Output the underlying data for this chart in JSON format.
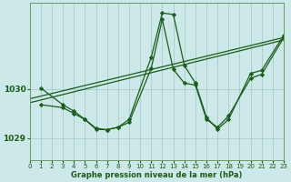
{
  "background_color": "#cce8e8",
  "grid_color": "#aacccc",
  "line_color": "#1a5c1a",
  "xlabel": "Graphe pression niveau de la mer (hPa)",
  "xlim": [
    0,
    23
  ],
  "ylim": [
    1028.55,
    1031.75
  ],
  "yticks": [
    1029,
    1030
  ],
  "xticks": [
    0,
    1,
    2,
    3,
    4,
    5,
    6,
    7,
    8,
    9,
    10,
    11,
    12,
    13,
    14,
    15,
    16,
    17,
    18,
    19,
    20,
    21,
    22,
    23
  ],
  "series": [
    {
      "x": [
        0,
        23
      ],
      "y": [
        1029.8,
        1031.05
      ],
      "marker": false
    },
    {
      "x": [
        0,
        23
      ],
      "y": [
        1029.72,
        1031.0
      ],
      "marker": false
    },
    {
      "x": [
        1,
        3,
        4,
        5,
        6,
        7,
        8,
        9,
        11,
        12,
        13,
        14,
        15,
        16,
        17,
        18,
        20,
        21,
        23
      ],
      "y": [
        1030.02,
        1029.68,
        1029.55,
        1029.38,
        1029.18,
        1029.17,
        1029.22,
        1029.38,
        1030.65,
        1031.55,
        1031.52,
        1030.48,
        1030.12,
        1029.42,
        1029.18,
        1029.38,
        1030.32,
        1030.38,
        1031.1
      ],
      "marker": true
    },
    {
      "x": [
        1,
        3,
        4,
        5,
        6,
        7,
        8,
        9,
        11,
        12,
        13,
        14,
        15,
        16,
        17,
        18,
        20,
        21,
        23
      ],
      "y": [
        1029.68,
        1029.62,
        1029.5,
        1029.38,
        1029.2,
        1029.17,
        1029.22,
        1029.32,
        1030.42,
        1031.42,
        1030.4,
        1030.12,
        1030.08,
        1029.38,
        1029.22,
        1029.45,
        1030.22,
        1030.3,
        1031.05
      ],
      "marker": true
    }
  ]
}
